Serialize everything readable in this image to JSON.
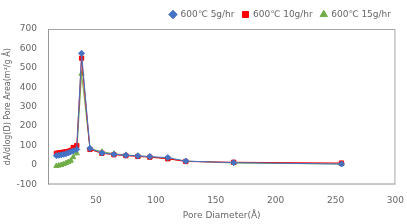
{
  "chart_data": {
    "type": "line",
    "xlabel": "Pore Diameter(Å)",
    "ylabel": "dA/dlog(D) Pore Area(m²/g Å)",
    "x": [
      17,
      19,
      21,
      23,
      25,
      27,
      29,
      31,
      34,
      38,
      45,
      55,
      65,
      75,
      85,
      95,
      110,
      125,
      165,
      255
    ],
    "series": [
      {
        "name": "600℃ 5g/hr",
        "color": "#4472C4",
        "marker": "diamond",
        "values": [
          48,
          50,
          52,
          55,
          58,
          62,
          68,
          72,
          80,
          575,
          85,
          62,
          55,
          50,
          47,
          43,
          38,
          20,
          12,
          5
        ]
      },
      {
        "name": "600℃ 10g/hr",
        "color": "#FF0000",
        "marker": "square",
        "values": [
          60,
          62,
          64,
          66,
          68,
          70,
          75,
          90,
          100,
          550,
          80,
          60,
          53,
          48,
          44,
          40,
          32,
          18,
          14,
          10
        ]
      },
      {
        "name": "600℃ 15g/hr",
        "color": "#70AD47",
        "marker": "triangle",
        "values": [
          -5,
          -3,
          0,
          5,
          10,
          15,
          22,
          40,
          60,
          470,
          85,
          68,
          58,
          52,
          47,
          42,
          32,
          20,
          10,
          5
        ]
      }
    ],
    "xlim": [
      10,
      300
    ],
    "ylim": [
      -100,
      700
    ],
    "xticks": [
      50,
      100,
      150,
      200,
      250,
      300
    ],
    "yticks": [
      -100,
      0,
      100,
      200,
      300,
      400,
      500,
      600,
      700
    ],
    "legend": "upper right",
    "grid": false
  }
}
